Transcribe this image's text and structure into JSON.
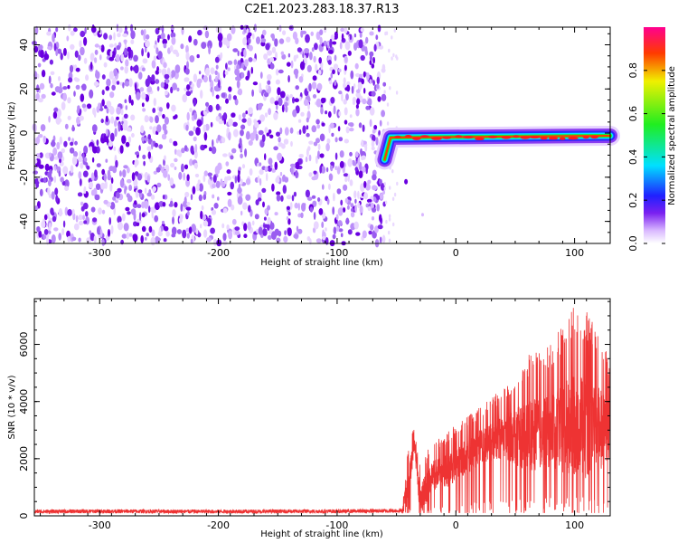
{
  "figure": {
    "title": "C2E1.2023.283.18.37.R13"
  },
  "colorbar": {
    "label": "Normalized spectral amplitude",
    "ticks": [
      "0.0",
      "0.2",
      "0.4",
      "0.6",
      "0.8"
    ],
    "range": [
      0,
      1
    ],
    "colormap": "rainbow (white → purple → blue → cyan → green → yellow → red → magenta)"
  },
  "chart_data": [
    {
      "type": "heatmap",
      "xlabel": "Height of straight line (km)",
      "ylabel": "Frequency (Hz)",
      "xlim": [
        -355,
        130
      ],
      "ylim": [
        -50,
        48
      ],
      "xticks": [
        "-300",
        "-200",
        "-100",
        "0",
        "100"
      ],
      "yticks": [
        "40",
        "20",
        "0",
        "-20",
        "-40"
      ],
      "grid": false,
      "regions": [
        {
          "x_range": [
            -355,
            -60
          ],
          "description_level": "noise",
          "amplitude": [
            0.0,
            0.25
          ]
        },
        {
          "x_range": [
            -55,
            130
          ],
          "frequency_hz": -2,
          "amplitude": [
            0.6,
            1.0
          ]
        }
      ],
      "ridge_start": {
        "x": -60,
        "frequency_hz": -12
      }
    },
    {
      "type": "line",
      "xlabel": "Height of straight line (km)",
      "ylabel": "SNR (10 * v/v)",
      "xlim": [
        -355,
        130
      ],
      "ylim": [
        0,
        7600
      ],
      "xticks": [
        "-300",
        "-200",
        "-100",
        "0",
        "100"
      ],
      "yticks": [
        "6000",
        "4000",
        "2000",
        "0"
      ],
      "grid": false,
      "series": [
        {
          "color": "#ee3333",
          "x": [
            -355,
            -300,
            -200,
            -100,
            -45,
            -40,
            -35,
            -30,
            -20,
            -10,
            0,
            20,
            40,
            60,
            80,
            100,
            110,
            120,
            130
          ],
          "y": [
            150,
            160,
            150,
            160,
            180,
            1200,
            2600,
            600,
            1500,
            1600,
            1900,
            2500,
            2900,
            3000,
            3200,
            3500,
            3400,
            3300,
            3200
          ],
          "y_peak": [
            300,
            300,
            300,
            320,
            400,
            2600,
            3200,
            1800,
            2600,
            2800,
            3200,
            3800,
            4500,
            5600,
            6000,
            7400,
            7200,
            6500,
            5500
          ]
        }
      ]
    }
  ]
}
